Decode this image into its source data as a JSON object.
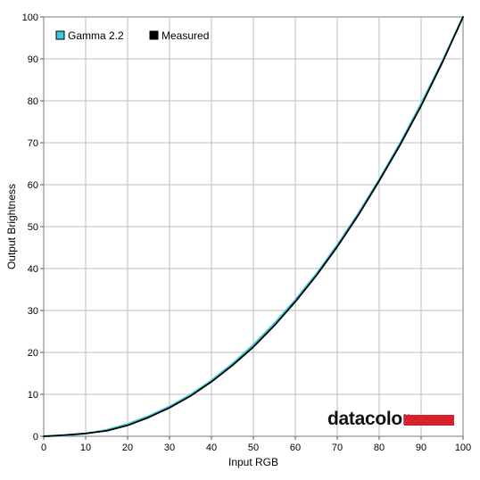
{
  "chart_data": {
    "type": "line",
    "xlabel": "Input RGB",
    "ylabel": "Output Brightness",
    "xlim": [
      0,
      100
    ],
    "ylim": [
      0,
      100
    ],
    "x_ticks": [
      "0",
      "10",
      "20",
      "30",
      "40",
      "50",
      "60",
      "70",
      "80",
      "90",
      "100"
    ],
    "y_ticks": [
      "0",
      "10",
      "20",
      "30",
      "40",
      "50",
      "60",
      "70",
      "80",
      "90",
      "100"
    ],
    "grid": true,
    "legend_position": "top-left",
    "x": [
      0,
      5,
      10,
      15,
      20,
      25,
      30,
      35,
      40,
      45,
      50,
      55,
      60,
      65,
      70,
      75,
      80,
      85,
      90,
      95,
      100
    ],
    "series": [
      {
        "name": "Gamma 2.2",
        "color": "#3fc8d8",
        "values": [
          0,
          0.14,
          0.63,
          1.5,
          2.9,
          4.8,
          7.1,
          9.9,
          13.3,
          17.3,
          21.8,
          26.9,
          32.5,
          38.7,
          45.6,
          53.1,
          61.2,
          69.9,
          79.3,
          89.3,
          100
        ]
      },
      {
        "name": "Measured",
        "color": "#000000",
        "values": [
          0,
          0.3,
          0.7,
          1.3,
          2.6,
          4.5,
          6.8,
          9.6,
          13.0,
          16.9,
          21.3,
          26.4,
          32.1,
          38.3,
          45.2,
          52.7,
          60.9,
          69.5,
          78.8,
          89.0,
          100
        ]
      }
    ],
    "brand": {
      "text": "datacolor",
      "bar_color": "#d8202a"
    }
  }
}
